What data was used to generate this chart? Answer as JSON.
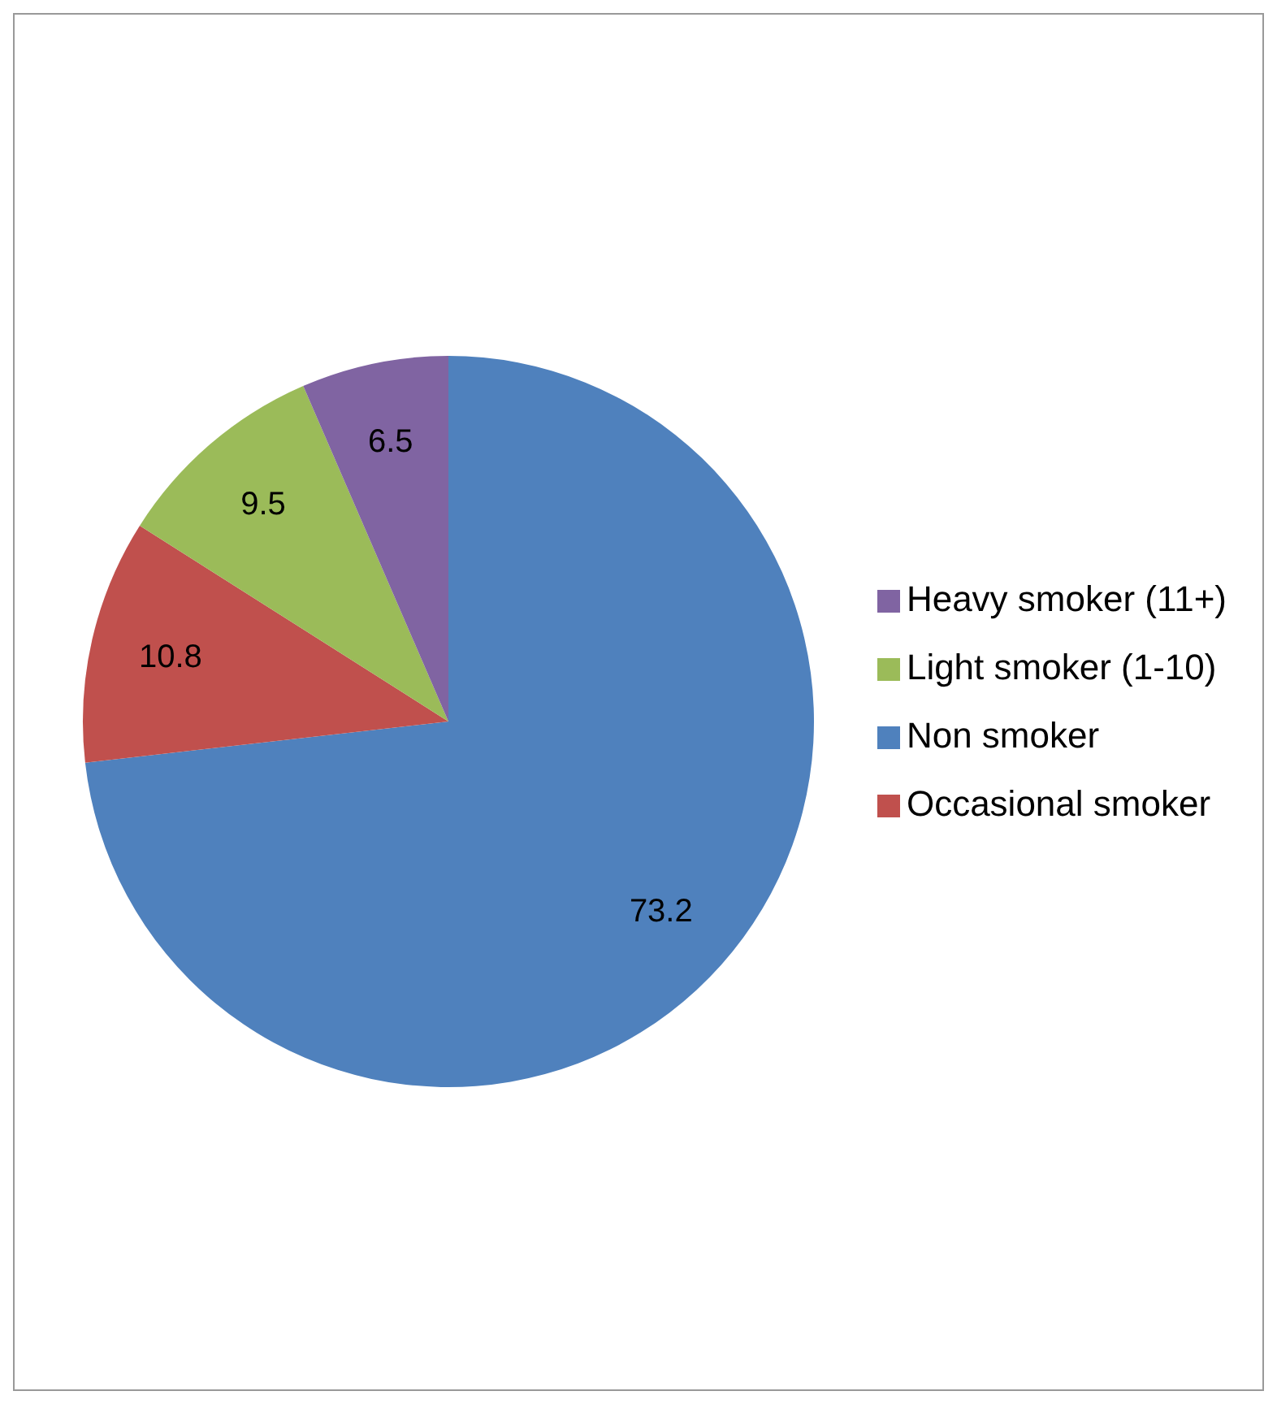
{
  "chart_data": {
    "type": "pie",
    "categories": [
      "Non smoker",
      "Occasional smoker",
      "Light smoker (1-10)",
      "Heavy smoker (11+)"
    ],
    "values": [
      73.2,
      10.8,
      9.5,
      6.5
    ],
    "colors": [
      "#4f81bd",
      "#c0504d",
      "#9bbb59",
      "#8064a2"
    ],
    "data_labels": true,
    "legend": "right"
  }
}
